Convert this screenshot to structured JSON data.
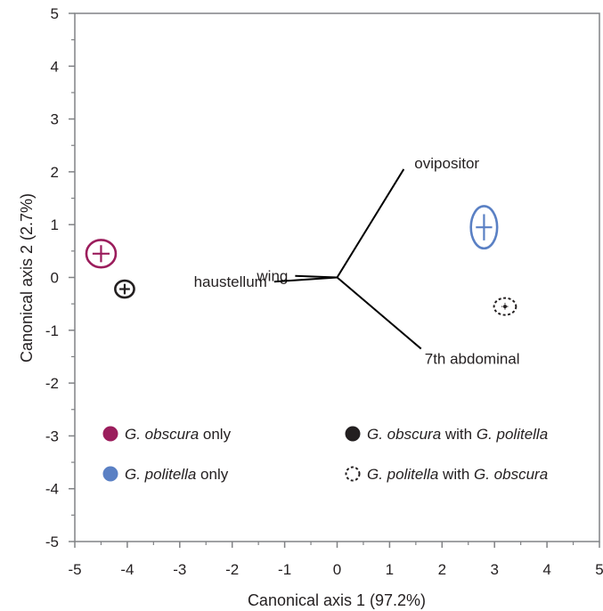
{
  "chart_data": {
    "type": "scatter",
    "xlabel": "Canonical axis 1 (97.2%)",
    "ylabel": "Canonical axis 2 (2.7%)",
    "xlim": [
      -5,
      5
    ],
    "ylim": [
      -5,
      5
    ],
    "x_ticks": [
      "-5",
      "-4",
      "-3",
      "-2",
      "-1",
      "0",
      "1",
      "2",
      "3",
      "4",
      "5"
    ],
    "y_ticks": [
      "5",
      "4",
      "3",
      "2",
      "1",
      "0",
      "-1",
      "-2",
      "-3",
      "-4",
      "-5"
    ],
    "grid": false,
    "legend_position": "bottom",
    "series": [
      {
        "name": "G. obscura only",
        "name_parts": [
          {
            "text": "G. obscura",
            "italic": true
          },
          {
            "text": " only",
            "italic": false
          }
        ],
        "style": "filled",
        "color": "#9b1d5c",
        "centroid": {
          "x": -4.5,
          "y": 0.45
        },
        "ellipse_radius": {
          "x": 0.28,
          "y": 0.26
        }
      },
      {
        "name": "G. obscura with G. politella",
        "name_parts": [
          {
            "text": "G. obscura",
            "italic": true
          },
          {
            "text": " with ",
            "italic": false
          },
          {
            "text": "G. politella",
            "italic": true
          }
        ],
        "style": "filled",
        "color": "#231f20",
        "centroid": {
          "x": -4.05,
          "y": -0.22
        },
        "ellipse_radius": {
          "x": 0.18,
          "y": 0.16
        }
      },
      {
        "name": "G. politella only",
        "name_parts": [
          {
            "text": "G. politella",
            "italic": true
          },
          {
            "text": " only",
            "italic": false
          }
        ],
        "style": "filled",
        "color": "#5a80c4",
        "centroid": {
          "x": 2.8,
          "y": 0.95
        },
        "ellipse_radius": {
          "x": 0.25,
          "y": 0.4
        }
      },
      {
        "name": "G. politella with G. obscura",
        "name_parts": [
          {
            "text": "G. politella",
            "italic": true
          },
          {
            "text": " with ",
            "italic": false
          },
          {
            "text": "G. obscura",
            "italic": true
          }
        ],
        "style": "dashed",
        "color": "#231f20",
        "centroid": {
          "x": 3.2,
          "y": -0.55
        },
        "ellipse_radius": {
          "x": 0.21,
          "y": 0.16
        }
      }
    ],
    "vectors": [
      {
        "label": "ovipositor",
        "x": 1.27,
        "y": 2.05,
        "label_anchor": "right"
      },
      {
        "label": "wing",
        "x": -0.8,
        "y": 0.03,
        "label_anchor": "left"
      },
      {
        "label": "haustellum",
        "x": -1.2,
        "y": -0.08,
        "label_anchor": "left"
      },
      {
        "label": "7th abdominal",
        "x": 1.6,
        "y": -1.35,
        "label_anchor": "below-right"
      }
    ]
  }
}
